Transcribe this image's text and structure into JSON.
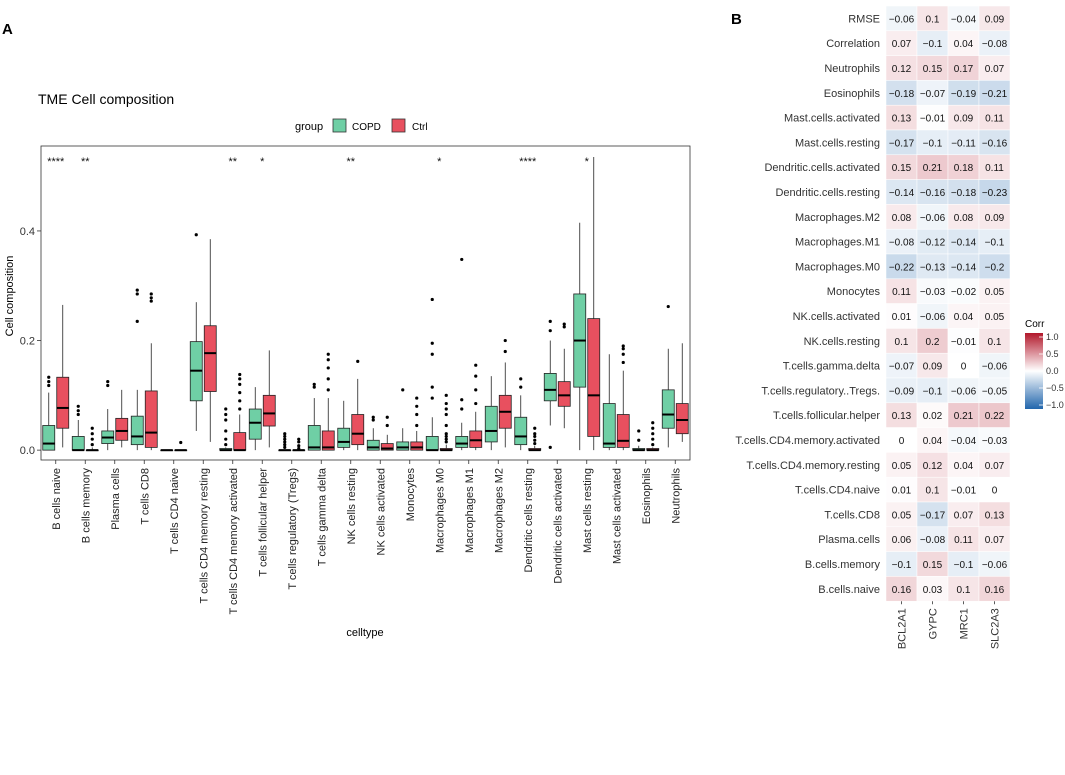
{
  "colors": {
    "copd": "#6fcfa5",
    "ctrl": "#e8505f",
    "corr_high": "#b2182b",
    "corr_mid": "#ffffff",
    "corr_low": "#2166ac"
  },
  "panel_a": {
    "label": "A",
    "title": "TME Cell composition",
    "legend_title": "group",
    "xlabel": "celltype",
    "ylabel": "Cell composition",
    "ylim": [
      -0.018,
      0.555
    ],
    "yticks": [
      0.0,
      0.2,
      0.4
    ],
    "ytick_labels": [
      "0.0",
      "0.2",
      "0.4"
    ]
  },
  "panel_b": {
    "label": "B",
    "legend_title": "Corr",
    "legend_ticks": [
      "1.0",
      "0.5",
      "0.0",
      "−0.5",
      "−1.0"
    ]
  },
  "chart_data": [
    {
      "type": "box",
      "title": "TME Cell composition",
      "xlabel": "celltype",
      "ylabel": "Cell composition",
      "ylim": [
        -0.018,
        0.555
      ],
      "legend": {
        "title": "group",
        "position": "top",
        "entries": [
          "COPD",
          "Ctrl"
        ]
      },
      "categories": [
        "B cells naive",
        "B cells memory",
        "Plasma cells",
        "T cells CD8",
        "T cells CD4 naive",
        "T cells CD4 memory resting",
        "T cells CD4 memory activated",
        "T cells follicular helper",
        "T cells regulatory (Tregs)",
        "T cells gamma delta",
        "NK cells resting",
        "NK cells activated",
        "Monocytes",
        "Macrophages M0",
        "Macrophages M1",
        "Macrophages M2",
        "Dendritic cells resting",
        "Dendritic cells activated",
        "Mast cells resting",
        "Mast cells activated",
        "Eosinophils",
        "Neutrophils"
      ],
      "significance": [
        "****",
        "**",
        "",
        "",
        "",
        "",
        "**",
        "*",
        "",
        "",
        "**",
        "",
        "",
        "*",
        "",
        "",
        "****",
        "",
        "*",
        "",
        "",
        ""
      ],
      "series": [
        {
          "name": "COPD",
          "boxes": [
            {
              "wl": 0,
              "q1": 0,
              "med": 0.012,
              "q3": 0.045,
              "wh": 0.105,
              "out": [
                0.118,
                0.125,
                0.133
              ]
            },
            {
              "wl": 0,
              "q1": 0,
              "med": 0,
              "q3": 0.025,
              "wh": 0.055,
              "out": [
                0.065,
                0.072,
                0.08
              ]
            },
            {
              "wl": 0,
              "q1": 0.012,
              "med": 0.023,
              "q3": 0.035,
              "wh": 0.075,
              "out": [
                0.118,
                0.125
              ]
            },
            {
              "wl": 0,
              "q1": 0.01,
              "med": 0.025,
              "q3": 0.062,
              "wh": 0.11,
              "out": [
                0.235,
                0.285,
                0.292
              ]
            },
            {
              "wl": 0,
              "q1": 0,
              "med": 0,
              "q3": 0,
              "wh": 0,
              "out": []
            },
            {
              "wl": 0.035,
              "q1": 0.09,
              "med": 0.145,
              "q3": 0.198,
              "wh": 0.27,
              "out": [
                0.393
              ]
            },
            {
              "wl": 0,
              "q1": 0,
              "med": 0,
              "q3": 0.003,
              "wh": 0.005,
              "out": [
                0.01,
                0.02,
                0.035,
                0.055,
                0.065,
                0.075
              ]
            },
            {
              "wl": 0,
              "q1": 0.02,
              "med": 0.05,
              "q3": 0.075,
              "wh": 0.115,
              "out": []
            },
            {
              "wl": 0,
              "q1": 0,
              "med": 0,
              "q3": 0,
              "wh": 0,
              "out": [
                0.005,
                0.01,
                0.015,
                0.02,
                0.025,
                0.03
              ]
            },
            {
              "wl": 0,
              "q1": 0,
              "med": 0.005,
              "q3": 0.045,
              "wh": 0.095,
              "out": [
                0.115,
                0.12
              ]
            },
            {
              "wl": 0,
              "q1": 0.005,
              "med": 0.015,
              "q3": 0.04,
              "wh": 0.09,
              "out": []
            },
            {
              "wl": 0,
              "q1": 0,
              "med": 0.005,
              "q3": 0.018,
              "wh": 0.04,
              "out": [
                0.055,
                0.06
              ]
            },
            {
              "wl": 0,
              "q1": 0,
              "med": 0.005,
              "q3": 0.015,
              "wh": 0.04,
              "out": [
                0.11
              ]
            },
            {
              "wl": 0,
              "q1": 0,
              "med": 0,
              "q3": 0.025,
              "wh": 0.06,
              "out": [
                0.095,
                0.115,
                0.175,
                0.195,
                0.275
              ]
            },
            {
              "wl": 0,
              "q1": 0.005,
              "med": 0.012,
              "q3": 0.025,
              "wh": 0.05,
              "out": [
                0.075,
                0.092,
                0.348
              ]
            },
            {
              "wl": 0,
              "q1": 0.015,
              "med": 0.035,
              "q3": 0.08,
              "wh": 0.135,
              "out": []
            },
            {
              "wl": 0,
              "q1": 0.01,
              "med": 0.025,
              "q3": 0.06,
              "wh": 0.1,
              "out": [
                0.115,
                0.13
              ]
            },
            {
              "wl": 0.045,
              "q1": 0.09,
              "med": 0.11,
              "q3": 0.14,
              "wh": 0.2,
              "out": [
                0.218,
                0.235,
                0.005
              ]
            },
            {
              "wl": 0,
              "q1": 0.115,
              "med": 0.2,
              "q3": 0.285,
              "wh": 0.415,
              "out": []
            },
            {
              "wl": 0,
              "q1": 0.005,
              "med": 0.012,
              "q3": 0.085,
              "wh": 0.175,
              "out": []
            },
            {
              "wl": 0,
              "q1": 0,
              "med": 0,
              "q3": 0.003,
              "wh": 0.008,
              "out": [
                0.018,
                0.035
              ]
            },
            {
              "wl": 0.005,
              "q1": 0.04,
              "med": 0.065,
              "q3": 0.11,
              "wh": 0.185,
              "out": [
                0.262
              ]
            }
          ]
        },
        {
          "name": "Ctrl",
          "boxes": [
            {
              "wl": 0.005,
              "q1": 0.04,
              "med": 0.077,
              "q3": 0.133,
              "wh": 0.265,
              "out": []
            },
            {
              "wl": 0,
              "q1": 0,
              "med": 0,
              "q3": 0,
              "wh": 0.005,
              "out": [
                0.01,
                0.02,
                0.03,
                0.04
              ]
            },
            {
              "wl": 0.005,
              "q1": 0.018,
              "med": 0.035,
              "q3": 0.058,
              "wh": 0.11,
              "out": []
            },
            {
              "wl": 0,
              "q1": 0.005,
              "med": 0.032,
              "q3": 0.108,
              "wh": 0.195,
              "out": [
                0.272,
                0.278,
                0.285
              ]
            },
            {
              "wl": 0,
              "q1": 0,
              "med": 0,
              "q3": 0,
              "wh": 0,
              "out": [
                0.014
              ]
            },
            {
              "wl": 0.015,
              "q1": 0.107,
              "med": 0.177,
              "q3": 0.227,
              "wh": 0.385,
              "out": []
            },
            {
              "wl": 0,
              "q1": 0,
              "med": 0,
              "q3": 0.032,
              "wh": 0.065,
              "out": [
                0.075,
                0.09,
                0.105,
                0.12,
                0.13,
                0.138
              ]
            },
            {
              "wl": 0.005,
              "q1": 0.044,
              "med": 0.067,
              "q3": 0.1,
              "wh": 0.182,
              "out": []
            },
            {
              "wl": 0,
              "q1": 0,
              "med": 0,
              "q3": 0,
              "wh": 0,
              "out": [
                0.003,
                0.008,
                0.015,
                0.02
              ]
            },
            {
              "wl": 0,
              "q1": 0,
              "med": 0.005,
              "q3": 0.035,
              "wh": 0.095,
              "out": [
                0.11,
                0.13,
                0.15,
                0.165,
                0.175
              ]
            },
            {
              "wl": 0,
              "q1": 0.01,
              "med": 0.03,
              "q3": 0.065,
              "wh": 0.13,
              "out": [
                0.162
              ]
            },
            {
              "wl": 0,
              "q1": 0,
              "med": 0.003,
              "q3": 0.012,
              "wh": 0.028,
              "out": [
                0.045,
                0.06
              ]
            },
            {
              "wl": 0,
              "q1": 0,
              "med": 0.005,
              "q3": 0.015,
              "wh": 0.035,
              "out": [
                0.045,
                0.065,
                0.08,
                0.095
              ]
            },
            {
              "wl": 0,
              "q1": 0,
              "med": 0,
              "q3": 0.003,
              "wh": 0.01,
              "out": [
                0.015,
                0.02,
                0.025,
                0.03,
                0.045,
                0.065,
                0.075,
                0.085,
                0.1
              ]
            },
            {
              "wl": 0,
              "q1": 0.005,
              "med": 0.018,
              "q3": 0.035,
              "wh": 0.07,
              "out": [
                0.085,
                0.11,
                0.135,
                0.155
              ]
            },
            {
              "wl": 0.005,
              "q1": 0.04,
              "med": 0.07,
              "q3": 0.1,
              "wh": 0.16,
              "out": [
                0.18,
                0.2
              ]
            },
            {
              "wl": 0,
              "q1": 0,
              "med": 0,
              "q3": 0.003,
              "wh": 0.008,
              "out": [
                0.012,
                0.018,
                0.025,
                0.03,
                0.04
              ]
            },
            {
              "wl": 0.04,
              "q1": 0.08,
              "med": 0.1,
              "q3": 0.125,
              "wh": 0.185,
              "out": [
                0.225,
                0.23
              ]
            },
            {
              "wl": 0,
              "q1": 0.025,
              "med": 0.1,
              "q3": 0.24,
              "wh": 0.535,
              "out": []
            },
            {
              "wl": 0,
              "q1": 0.005,
              "med": 0.017,
              "q3": 0.065,
              "wh": 0.145,
              "out": [
                0.16,
                0.175,
                0.185,
                0.19
              ]
            },
            {
              "wl": 0,
              "q1": 0,
              "med": 0,
              "q3": 0.003,
              "wh": 0.005,
              "out": [
                0.01,
                0.02,
                0.03,
                0.04,
                0.05
              ]
            },
            {
              "wl": 0.015,
              "q1": 0.03,
              "med": 0.055,
              "q3": 0.085,
              "wh": 0.195,
              "out": []
            }
          ]
        }
      ]
    },
    {
      "type": "heatmap",
      "legend_title": "Corr",
      "range": [
        -1,
        1
      ],
      "columns": [
        "BCL2A1",
        "GYPC",
        "MRC1",
        "SLC2A3"
      ],
      "rows": [
        "RMSE",
        "Correlation",
        "Neutrophils",
        "Eosinophils",
        "Mast.cells.activated",
        "Mast.cells.resting",
        "Dendritic.cells.activated",
        "Dendritic.cells.resting",
        "Macrophages.M2",
        "Macrophages.M1",
        "Macrophages.M0",
        "Monocytes",
        "NK.cells.activated",
        "NK.cells.resting",
        "T.cells.gamma.delta",
        "T.cells.regulatory..Tregs.",
        "T.cells.follicular.helper",
        "T.cells.CD4.memory.activated",
        "T.cells.CD4.memory.resting",
        "T.cells.CD4.naive",
        "T.cells.CD8",
        "Plasma.cells",
        "B.cells.memory",
        "B.cells.naive"
      ],
      "values": [
        [
          -0.06,
          0.1,
          -0.04,
          0.09
        ],
        [
          0.07,
          -0.1,
          0.04,
          -0.08
        ],
        [
          0.12,
          0.15,
          0.17,
          0.07
        ],
        [
          -0.18,
          -0.07,
          -0.19,
          -0.21
        ],
        [
          0.13,
          -0.01,
          0.09,
          0.11
        ],
        [
          -0.17,
          -0.1,
          -0.11,
          -0.16
        ],
        [
          0.15,
          0.21,
          0.18,
          0.11
        ],
        [
          -0.14,
          -0.16,
          -0.18,
          -0.23
        ],
        [
          0.08,
          -0.06,
          0.08,
          0.09
        ],
        [
          -0.08,
          -0.12,
          -0.14,
          -0.1
        ],
        [
          -0.22,
          -0.13,
          -0.14,
          -0.2
        ],
        [
          0.11,
          -0.03,
          -0.02,
          0.05
        ],
        [
          0.01,
          -0.06,
          0.04,
          0.05
        ],
        [
          0.1,
          0.2,
          -0.01,
          0.1
        ],
        [
          -0.07,
          0.09,
          0,
          -0.06
        ],
        [
          -0.09,
          -0.1,
          -0.06,
          -0.05
        ],
        [
          0.13,
          0.02,
          0.21,
          0.22
        ],
        [
          0,
          0.04,
          -0.04,
          -0.03
        ],
        [
          0.05,
          0.12,
          0.04,
          0.07
        ],
        [
          0.01,
          0.1,
          -0.01,
          0
        ],
        [
          0.05,
          -0.17,
          0.07,
          0.13
        ],
        [
          0.06,
          -0.08,
          0.11,
          0.07
        ],
        [
          -0.1,
          0.15,
          -0.1,
          -0.06
        ],
        [
          0.16,
          0.03,
          0.1,
          0.16
        ]
      ]
    }
  ]
}
